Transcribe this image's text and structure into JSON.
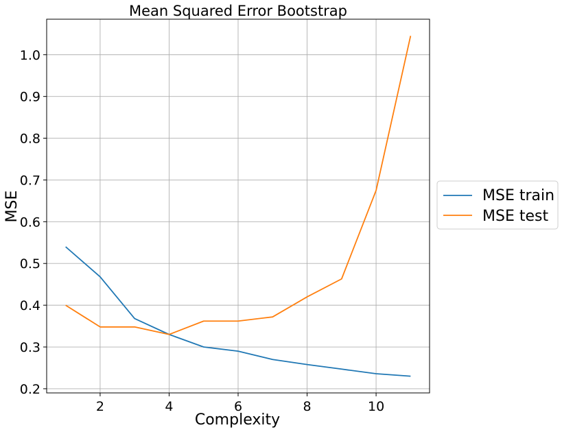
{
  "chart_data": {
    "type": "line",
    "title": "Mean Squared Error Bootstrap",
    "xlabel": "Complexity",
    "ylabel": "MSE",
    "xlim": [
      0.45,
      11.55
    ],
    "ylim": [
      0.19,
      1.085
    ],
    "xticks": [
      2,
      4,
      6,
      8,
      10
    ],
    "yticks": [
      0.2,
      0.3,
      0.4,
      0.5,
      0.6,
      0.7,
      0.8,
      0.9,
      1.0
    ],
    "xtick_labels": [
      "2",
      "4",
      "6",
      "8",
      "10"
    ],
    "ytick_labels": [
      "0.2",
      "0.3",
      "0.4",
      "0.5",
      "0.6",
      "0.7",
      "0.8",
      "0.9",
      "1.0"
    ],
    "grid": true,
    "legend_position": "outside-right",
    "x": [
      1,
      2,
      3,
      4,
      5,
      6,
      7,
      8,
      9,
      10,
      11
    ],
    "series": [
      {
        "name": "MSE train",
        "color": "#1f77b4",
        "values": [
          0.54,
          0.468,
          0.368,
          0.33,
          0.3,
          0.29,
          0.27,
          0.258,
          0.247,
          0.236,
          0.23
        ]
      },
      {
        "name": "MSE test",
        "color": "#ff7f0e",
        "values": [
          0.4,
          0.348,
          0.348,
          0.33,
          0.362,
          0.362,
          0.372,
          0.42,
          0.463,
          0.675,
          1.045
        ]
      }
    ]
  }
}
